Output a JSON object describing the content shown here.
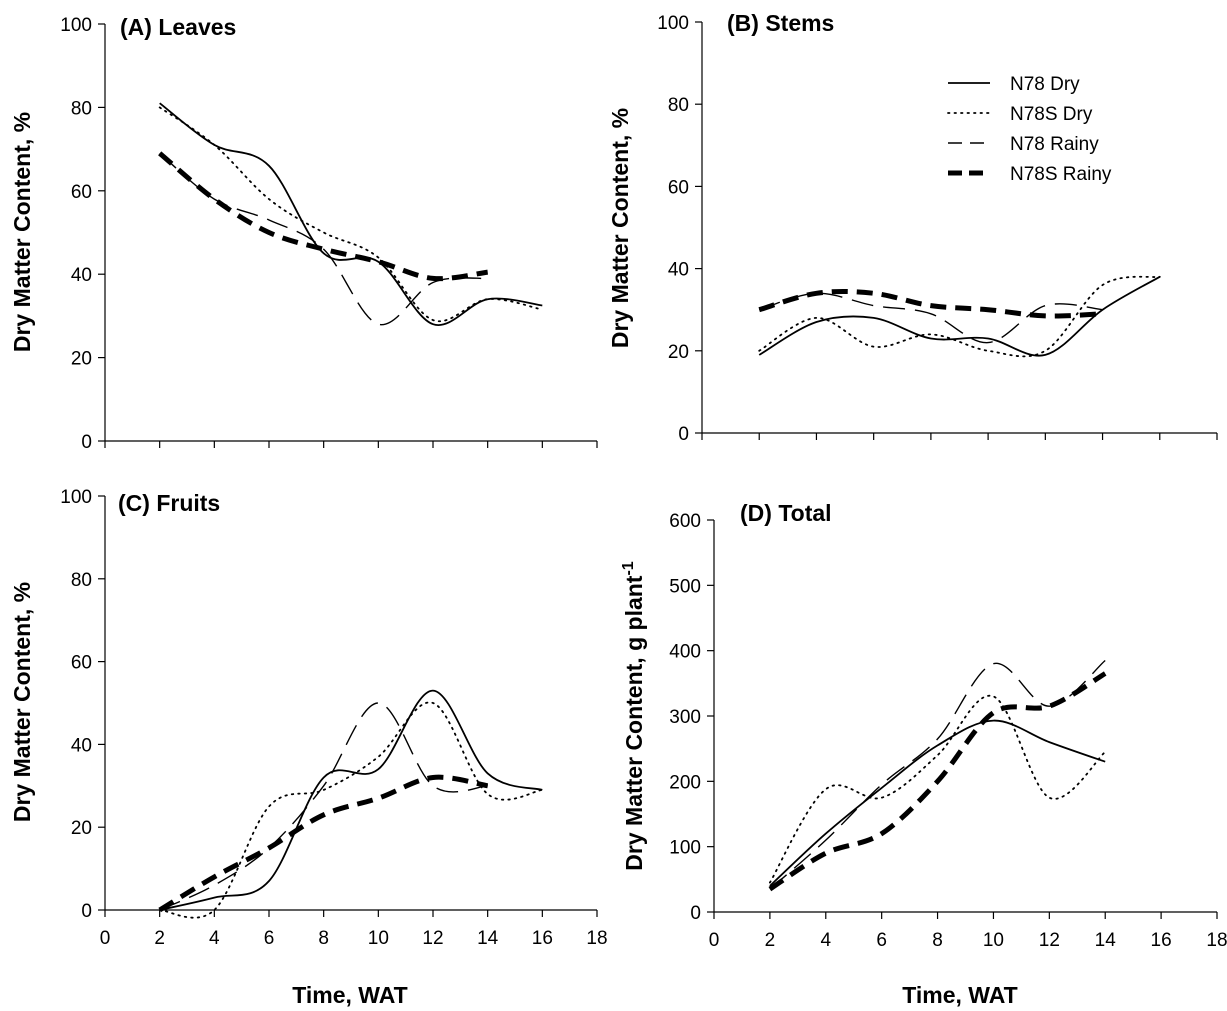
{
  "figure": {
    "chart_data": [
      {
        "type": "line",
        "title": "(A) Leaves",
        "xlabel": "",
        "ylabel": "Dry Matter Content, %",
        "xlim": [
          0,
          18
        ],
        "ylim": [
          0,
          100
        ],
        "xticks": [],
        "yticks": [
          0,
          20,
          40,
          60,
          80,
          100
        ],
        "series": [
          {
            "name": "N78 Dry",
            "x": [
              2,
              4,
              6,
              8,
              10,
              12,
              14,
              16
            ],
            "y": [
              81,
              71,
              66,
              45,
              43,
              28,
              34,
              32.5
            ]
          },
          {
            "name": "N78S Dry",
            "x": [
              2,
              4,
              6,
              8,
              10,
              12,
              14,
              16
            ],
            "y": [
              80,
              71,
              58,
              50,
              44,
              29,
              34,
              31.5
            ]
          },
          {
            "name": "N78 Rainy",
            "x": [
              2,
              4,
              6,
              8,
              10,
              12,
              14
            ],
            "y": [
              69,
              58,
              53,
              46,
              28,
              38,
              39
            ]
          },
          {
            "name": "N78S Rainy",
            "x": [
              2,
              4,
              6,
              8,
              10,
              12,
              14
            ],
            "y": [
              69,
              58,
              50,
              46,
              43,
              39,
              40.5
            ]
          }
        ]
      },
      {
        "type": "line",
        "title": "(B) Stems",
        "xlabel": "",
        "ylabel": "Dry Matter Content, %",
        "xlim": [
          0,
          18
        ],
        "ylim": [
          0,
          100
        ],
        "xticks": [],
        "yticks": [
          0,
          20,
          40,
          60,
          80,
          100
        ],
        "series": [
          {
            "name": "N78 Dry",
            "x": [
              2,
              4,
              6,
              8,
              10,
              12,
              14,
              16
            ],
            "y": [
              19,
              27,
              28,
              23,
              23,
              19,
              30,
              38
            ]
          },
          {
            "name": "N78S Dry",
            "x": [
              2,
              4,
              6,
              8,
              10,
              12,
              14,
              16
            ],
            "y": [
              20,
              28,
              21,
              24,
              20,
              20,
              36,
              38
            ]
          },
          {
            "name": "N78 Rainy",
            "x": [
              2,
              4,
              6,
              8,
              10,
              12,
              14
            ],
            "y": [
              30,
              34,
              31,
              29,
              22,
              31,
              30
            ]
          },
          {
            "name": "N78S Rainy",
            "x": [
              2,
              4,
              6,
              8,
              10,
              12,
              14
            ],
            "y": [
              30,
              34,
              34,
              31,
              30,
              28.5,
              29
            ]
          }
        ]
      },
      {
        "type": "line",
        "title": "(C) Fruits",
        "xlabel": "Time, WAT",
        "ylabel": "Dry Matter Content, %",
        "xlim": [
          0,
          18
        ],
        "ylim": [
          0,
          100
        ],
        "xticks": [
          0,
          2,
          4,
          6,
          8,
          10,
          12,
          14,
          16,
          18
        ],
        "yticks": [
          0,
          20,
          40,
          60,
          80,
          100
        ],
        "series": [
          {
            "name": "N78 Dry",
            "x": [
              2,
              4,
              6,
              8,
              10,
              12,
              14,
              16
            ],
            "y": [
              0,
              3,
              7,
              32,
              34,
              53,
              33,
              29
            ]
          },
          {
            "name": "N78S Dry",
            "x": [
              2,
              4,
              6,
              8,
              10,
              12,
              14,
              16
            ],
            "y": [
              0,
              0,
              25,
              29,
              37,
              50,
              28,
              29
            ]
          },
          {
            "name": "N78 Rainy",
            "x": [
              2,
              4,
              6,
              8,
              10,
              12,
              14
            ],
            "y": [
              0,
              6,
              15,
              30,
              50,
              30,
              30
            ]
          },
          {
            "name": "N78S Rainy",
            "x": [
              2,
              4,
              6,
              8,
              10,
              12,
              14
            ],
            "y": [
              0,
              8,
              15,
              23,
              27,
              32,
              30
            ]
          }
        ]
      },
      {
        "type": "line",
        "title": "(D) Total",
        "xlabel": "Time, WAT",
        "ylabel": "Dry Matter Content, g plant",
        "ylabel_sup": "-1",
        "xlim": [
          0,
          18
        ],
        "ylim": [
          0,
          600
        ],
        "xticks": [
          0,
          2,
          4,
          6,
          8,
          10,
          12,
          14,
          16,
          18
        ],
        "yticks": [
          0,
          100,
          200,
          300,
          400,
          500,
          600
        ],
        "legend": "top-right",
        "series": [
          {
            "name": "N78 Dry",
            "x": [
              2,
              4,
              6,
              8,
              10,
              12,
              14
            ],
            "y": [
              40,
              120,
              190,
              255,
              293,
              260,
              230
            ]
          },
          {
            "name": "N78S Dry",
            "x": [
              2,
              4,
              6,
              8,
              10,
              12,
              14
            ],
            "y": [
              45,
              188,
              175,
              240,
              330,
              175,
              245
            ]
          },
          {
            "name": "N78 Rainy",
            "x": [
              2,
              4,
              6,
              8,
              10,
              12,
              14
            ],
            "y": [
              35,
              110,
              195,
              265,
              380,
              315,
              385
            ]
          },
          {
            "name": "N78S Rainy",
            "x": [
              2,
              4,
              6,
              8,
              10,
              12,
              14
            ],
            "y": [
              35,
              90,
              120,
              200,
              305,
              315,
              365
            ]
          }
        ]
      }
    ],
    "legend": {
      "placement": "top-right of panel (B)",
      "items": [
        {
          "label": "N78 Dry",
          "style": "solid"
        },
        {
          "label": "N78S Dry",
          "style": "dotted"
        },
        {
          "label": "N78 Rainy",
          "style": "dashed"
        },
        {
          "label": "N78S Rainy",
          "style": "bold-dashed"
        }
      ]
    }
  }
}
